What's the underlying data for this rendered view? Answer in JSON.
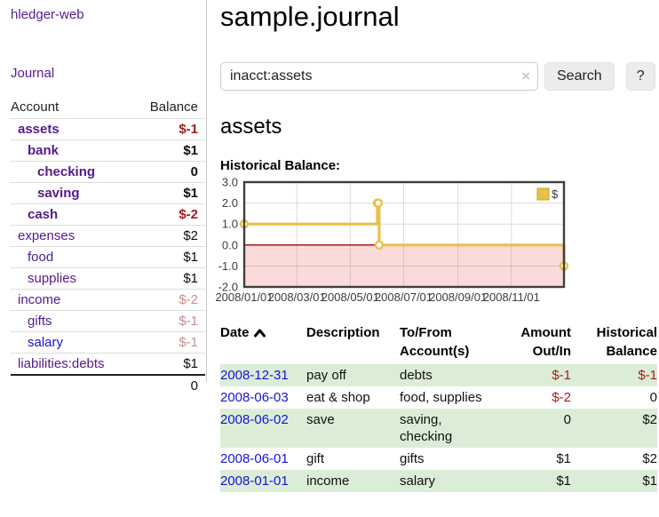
{
  "app": {
    "brand": "hledger-web",
    "nav_journal": "Journal"
  },
  "sidebar": {
    "header": {
      "account": "Account",
      "balance": "Balance"
    },
    "rows": [
      {
        "name": "assets",
        "indent": 1,
        "bold": true,
        "balance": "$-1",
        "neg": true,
        "dim": false,
        "blue": false
      },
      {
        "name": "bank",
        "indent": 2,
        "bold": true,
        "balance": "$1",
        "neg": false,
        "dim": false,
        "blue": false
      },
      {
        "name": "checking",
        "indent": 3,
        "bold": true,
        "balance": "0",
        "neg": false,
        "dim": false,
        "blue": false
      },
      {
        "name": "saving",
        "indent": 3,
        "bold": true,
        "balance": "$1",
        "neg": false,
        "dim": false,
        "blue": false
      },
      {
        "name": "cash",
        "indent": 2,
        "bold": true,
        "balance": "$-2",
        "neg": true,
        "dim": false,
        "blue": false
      },
      {
        "name": "expenses",
        "indent": 1,
        "bold": false,
        "balance": "$2",
        "neg": false,
        "dim": false,
        "blue": false
      },
      {
        "name": "food",
        "indent": 2,
        "bold": false,
        "balance": "$1",
        "neg": false,
        "dim": false,
        "blue": false
      },
      {
        "name": "supplies",
        "indent": 2,
        "bold": false,
        "balance": "$1",
        "neg": false,
        "dim": false,
        "blue": false
      },
      {
        "name": "income",
        "indent": 1,
        "bold": false,
        "balance": "$-2",
        "neg": true,
        "dim": true,
        "blue": false
      },
      {
        "name": "gifts",
        "indent": 2,
        "bold": false,
        "balance": "$-1",
        "neg": true,
        "dim": true,
        "blue": false
      },
      {
        "name": "salary",
        "indent": 2,
        "bold": false,
        "balance": "$-1",
        "neg": true,
        "dim": true,
        "blue": true
      },
      {
        "name": "liabilities:debts",
        "indent": 1,
        "bold": false,
        "balance": "$1",
        "neg": false,
        "dim": false,
        "blue": false
      }
    ],
    "total": "0"
  },
  "header": {
    "title": "sample.journal"
  },
  "search": {
    "value": "inacct:assets",
    "clear_icon": "×",
    "button_label": "Search",
    "help_label": "?"
  },
  "account_page": {
    "heading": "assets",
    "chart_label": "Historical Balance:"
  },
  "chart_data": {
    "type": "line",
    "step": true,
    "title": "Historical Balance",
    "series": [
      {
        "name": "$",
        "color": "#e9c14a",
        "marker_fill": "#ffffff",
        "points": [
          {
            "date": "2008-01-01",
            "value": 1
          },
          {
            "date": "2008-06-01",
            "value": 2
          },
          {
            "date": "2008-06-02",
            "value": 2
          },
          {
            "date": "2008-06-03",
            "value": 0
          },
          {
            "date": "2008-12-31",
            "value": -1
          }
        ]
      }
    ],
    "x_range": [
      "2008-01-01",
      "2008-12-31"
    ],
    "x_ticks": [
      "2008/01/01",
      "2008/03/01",
      "2008/05/01",
      "2008/07/01",
      "2008/09/01",
      "2008/11/01"
    ],
    "y_range": [
      -2,
      3
    ],
    "y_ticks": [
      3.0,
      2.0,
      1.0,
      0.0,
      -1.0,
      -2.0
    ],
    "grid": true,
    "negative_fill": "#fbdada",
    "zero_line_color": "#a40000",
    "border_color": "#3f3f3f",
    "legend": {
      "label": "$",
      "position": "top-right"
    }
  },
  "register": {
    "columns": {
      "date": "Date",
      "description": "Description",
      "accounts": "To/From\nAccount(s)",
      "amount": "Amount\nOut/In",
      "balance": "Historical\nBalance"
    },
    "rows": [
      {
        "date": "2008-12-31",
        "description": "pay off",
        "accounts": "debts",
        "amount": "$-1",
        "amount_neg": true,
        "balance": "$-1",
        "balance_neg": true
      },
      {
        "date": "2008-06-03",
        "description": "eat & shop",
        "accounts": "food, supplies",
        "amount": "$-2",
        "amount_neg": true,
        "balance": "0",
        "balance_neg": false
      },
      {
        "date": "2008-06-02",
        "description": "save",
        "accounts": "saving,\nchecking",
        "amount": "0",
        "amount_neg": false,
        "balance": "$2",
        "balance_neg": false
      },
      {
        "date": "2008-06-01",
        "description": "gift",
        "accounts": "gifts",
        "amount": "$1",
        "amount_neg": false,
        "balance": "$2",
        "balance_neg": false
      },
      {
        "date": "2008-01-01",
        "description": "income",
        "accounts": "salary",
        "amount": "$1",
        "amount_neg": false,
        "balance": "$1",
        "balance_neg": false
      }
    ]
  }
}
